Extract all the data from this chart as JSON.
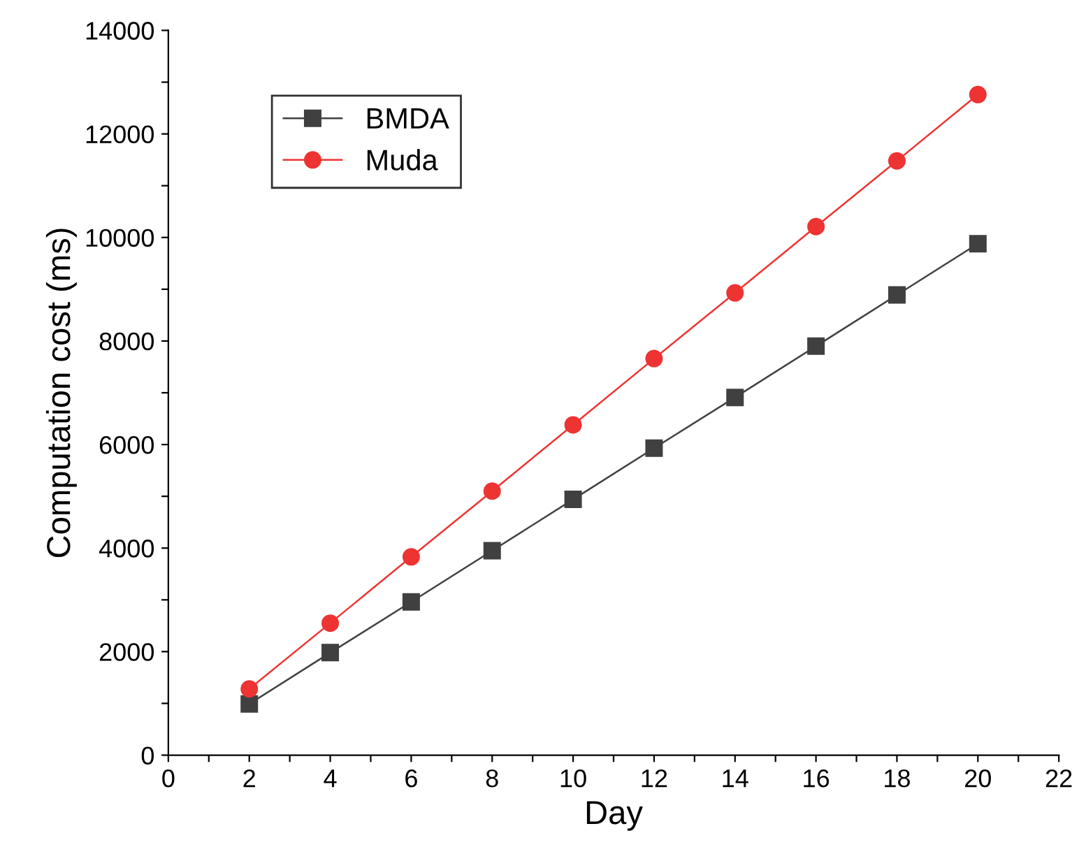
{
  "chart_data": {
    "type": "line",
    "xlabel": "Day",
    "ylabel": "Computation cost (ms)",
    "x": [
      2,
      4,
      6,
      8,
      10,
      12,
      14,
      16,
      18,
      20
    ],
    "series": [
      {
        "name": "BMDA",
        "color": "#404040",
        "marker": "square",
        "values": [
          990,
          1980,
          2960,
          3950,
          4940,
          5930,
          6910,
          7900,
          8890,
          9880
        ]
      },
      {
        "name": "Muda",
        "color": "#ee3333",
        "marker": "circle",
        "values": [
          1280,
          2550,
          3830,
          5100,
          6380,
          7660,
          8930,
          10210,
          11480,
          12760
        ]
      }
    ],
    "xlim": [
      0,
      22
    ],
    "xticks": [
      0,
      {
        "value": 1,
        "label": null
      },
      2,
      {
        "value": 3,
        "label": null
      },
      4,
      {
        "value": 5,
        "label": null
      },
      6,
      {
        "value": 7,
        "label": null
      },
      8,
      {
        "value": 9,
        "label": null
      },
      10,
      {
        "value": 11,
        "label": null
      },
      12,
      {
        "value": 13,
        "label": null
      },
      14,
      {
        "value": 15,
        "label": null
      },
      16,
      {
        "value": 17,
        "label": null
      },
      18,
      {
        "value": 19,
        "label": null
      },
      20,
      {
        "value": 21,
        "label": null
      },
      22
    ],
    "ylim": [
      0,
      14000
    ],
    "yticks": [
      0,
      {
        "value": 1000,
        "label": null
      },
      2000,
      {
        "value": 3000,
        "label": null
      },
      4000,
      {
        "value": 5000,
        "label": null
      },
      6000,
      {
        "value": 7000,
        "label": null
      },
      8000,
      {
        "value": 9000,
        "label": null
      },
      10000,
      {
        "value": 11000,
        "label": null
      },
      12000,
      {
        "value": 13000,
        "label": null
      },
      14000
    ],
    "grid": false,
    "legend": "top left",
    "line_style": "solid"
  }
}
